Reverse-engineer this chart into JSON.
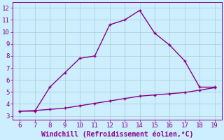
{
  "line1_x": [
    6,
    7,
    8,
    9,
    10,
    11,
    12,
    13,
    14,
    15,
    16,
    17,
    18,
    19
  ],
  "line1_y": [
    3.4,
    3.4,
    5.4,
    6.6,
    7.8,
    8.0,
    10.6,
    11.0,
    11.8,
    9.9,
    8.9,
    7.6,
    5.4,
    5.4
  ],
  "line2_x": [
    6,
    7,
    8,
    9,
    10,
    11,
    12,
    13,
    14,
    15,
    16,
    17,
    18,
    19
  ],
  "line2_y": [
    3.4,
    3.45,
    3.55,
    3.65,
    3.85,
    4.05,
    4.25,
    4.45,
    4.65,
    4.75,
    4.85,
    4.95,
    5.15,
    5.35
  ],
  "line_color": "#880088",
  "bg_color": "#cceeff",
  "grid_color": "#aacccc",
  "xlabel": "Windchill (Refroidissement éolien,°C)",
  "xlim": [
    5.5,
    19.5
  ],
  "ylim": [
    2.7,
    12.5
  ],
  "xticks": [
    6,
    7,
    8,
    9,
    10,
    11,
    12,
    13,
    14,
    15,
    16,
    17,
    18,
    19
  ],
  "yticks": [
    3,
    4,
    5,
    6,
    7,
    8,
    9,
    10,
    11,
    12
  ],
  "marker": "P",
  "markersize": 3.5,
  "linewidth": 1.0,
  "tick_color": "#880088",
  "label_color": "#880088",
  "xlabel_fontsize": 7.0,
  "tick_fontsize": 6.5
}
